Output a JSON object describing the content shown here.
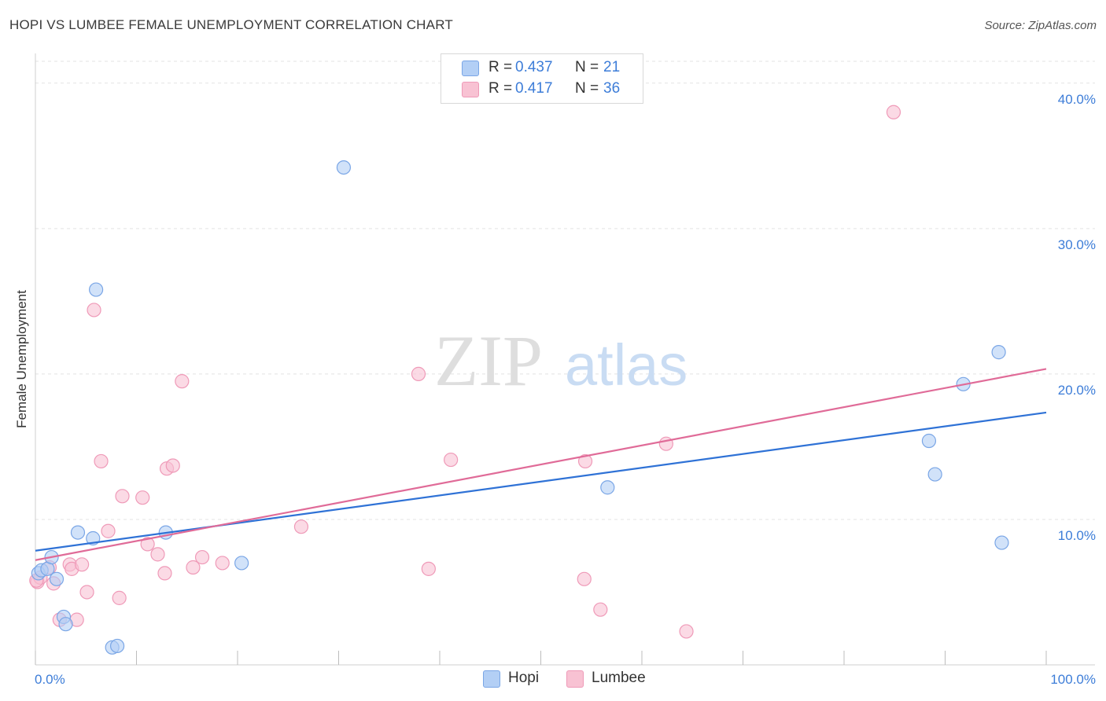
{
  "header": {
    "title": "HOPI VS LUMBEE FEMALE UNEMPLOYMENT CORRELATION CHART",
    "source": "Source: ZipAtlas.com"
  },
  "watermark": {
    "zip": "ZIP",
    "atlas": "atlas"
  },
  "legend": {
    "series": [
      {
        "name": "Hopi",
        "r_label": "R =",
        "r_value": "0.437",
        "n_label": "N =",
        "n_value": "21"
      },
      {
        "name": "Lumbee",
        "r_label": "R =",
        "r_value": "0.417",
        "n_label": "N =",
        "n_value": "36"
      }
    ]
  },
  "colors": {
    "hopi_fill": "#b3cff5",
    "hopi_stroke": "#7aa6e6",
    "hopi_line": "#2f72d6",
    "lumbee_fill": "#f8c2d3",
    "lumbee_stroke": "#ef9ab8",
    "lumbee_line": "#e06b98",
    "tick_text": "#3d7dd8",
    "grid": "#e3e3e3"
  },
  "chart_data": {
    "type": "scatter",
    "title": "HOPI VS LUMBEE FEMALE UNEMPLOYMENT CORRELATION CHART",
    "xlabel": "",
    "ylabel": "Female Unemployment",
    "xlim": [
      0,
      100
    ],
    "ylim": [
      0,
      41.5
    ],
    "x_tick_labels": [
      {
        "value": 0,
        "label": "0.0%"
      },
      {
        "value": 100,
        "label": "100.0%"
      }
    ],
    "y_tick_labels": [
      {
        "value": 10,
        "label": "10.0%"
      },
      {
        "value": 20,
        "label": "20.0%"
      },
      {
        "value": 30,
        "label": "30.0%"
      },
      {
        "value": 40,
        "label": "40.0%"
      }
    ],
    "grid": true,
    "series": [
      {
        "name": "Hopi",
        "points": [
          [
            0.3,
            6.3
          ],
          [
            0.6,
            6.5
          ],
          [
            1.2,
            6.6
          ],
          [
            1.6,
            7.4
          ],
          [
            2.1,
            5.9
          ],
          [
            2.8,
            3.3
          ],
          [
            3.0,
            2.8
          ],
          [
            4.2,
            9.1
          ],
          [
            5.7,
            8.7
          ],
          [
            6.0,
            25.8
          ],
          [
            7.6,
            1.2
          ],
          [
            8.1,
            1.3
          ],
          [
            12.9,
            9.1
          ],
          [
            20.4,
            7.0
          ],
          [
            30.5,
            34.2
          ],
          [
            56.6,
            12.2
          ],
          [
            88.4,
            15.4
          ],
          [
            89.0,
            13.1
          ],
          [
            91.8,
            19.3
          ],
          [
            95.3,
            21.5
          ],
          [
            95.6,
            8.4
          ]
        ],
        "trend": {
          "x0": 0,
          "y0": 7.85,
          "x1": 100,
          "y1": 17.35
        }
      },
      {
        "name": "Lumbee",
        "points": [
          [
            0.2,
            5.7
          ],
          [
            0.5,
            6.0
          ],
          [
            1.4,
            6.7
          ],
          [
            1.8,
            5.6
          ],
          [
            2.4,
            3.1
          ],
          [
            3.4,
            6.9
          ],
          [
            3.6,
            6.6
          ],
          [
            4.1,
            3.1
          ],
          [
            4.6,
            6.9
          ],
          [
            5.1,
            5.0
          ],
          [
            5.8,
            24.4
          ],
          [
            6.5,
            14.0
          ],
          [
            7.2,
            9.2
          ],
          [
            8.3,
            4.6
          ],
          [
            8.6,
            11.6
          ],
          [
            10.6,
            11.5
          ],
          [
            11.1,
            8.3
          ],
          [
            12.1,
            7.6
          ],
          [
            12.8,
            6.3
          ],
          [
            13.0,
            13.5
          ],
          [
            13.6,
            13.7
          ],
          [
            14.5,
            19.5
          ],
          [
            15.6,
            6.7
          ],
          [
            16.5,
            7.4
          ],
          [
            18.5,
            7.0
          ],
          [
            26.3,
            9.5
          ],
          [
            37.9,
            20.0
          ],
          [
            38.9,
            6.6
          ],
          [
            41.1,
            14.1
          ],
          [
            54.3,
            5.9
          ],
          [
            54.4,
            14.0
          ],
          [
            55.9,
            3.8
          ],
          [
            62.4,
            15.2
          ],
          [
            64.4,
            2.3
          ],
          [
            84.9,
            38.0
          ],
          [
            0.1,
            5.8
          ]
        ],
        "trend": {
          "x0": 0,
          "y0": 7.2,
          "x1": 100,
          "y1": 20.35
        }
      }
    ]
  }
}
